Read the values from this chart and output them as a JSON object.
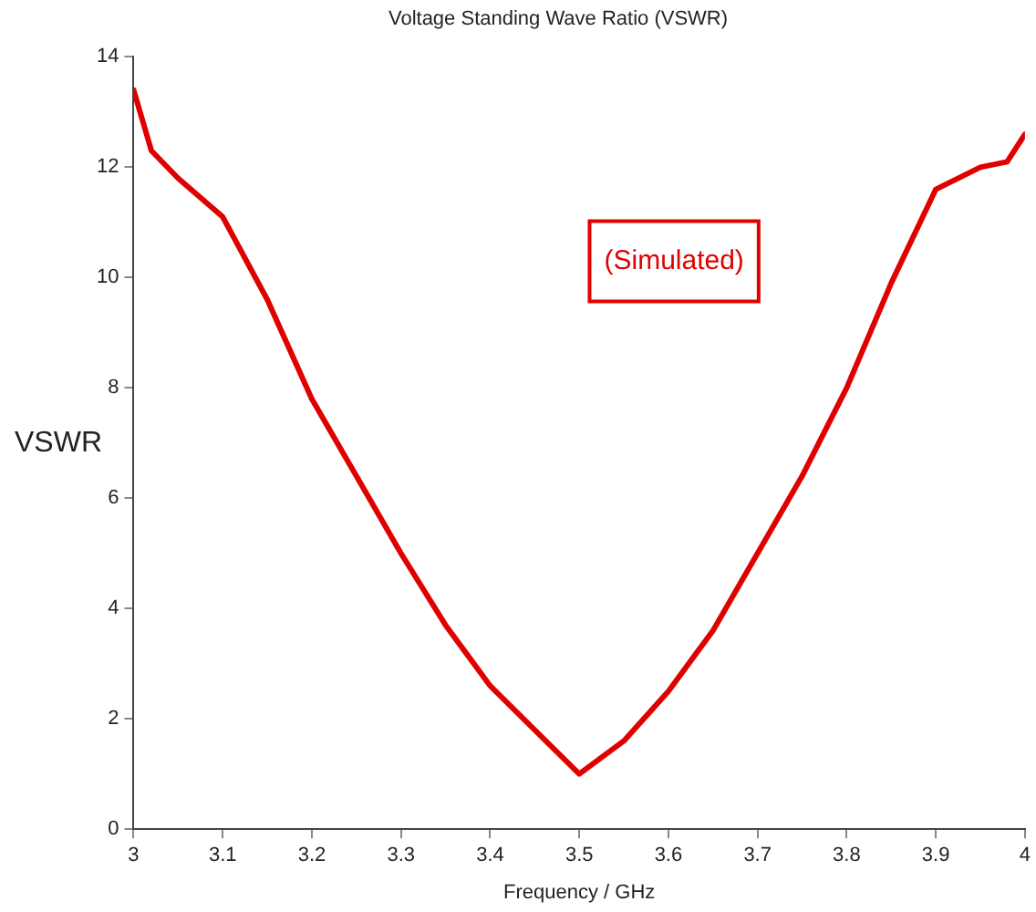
{
  "chart_data": {
    "type": "line",
    "title": "Voltage Standing Wave Ratio (VSWR)",
    "xlabel": "Frequency / GHz",
    "ylabel": "VSWR",
    "x": [
      3.0,
      3.02,
      3.05,
      3.1,
      3.15,
      3.2,
      3.25,
      3.3,
      3.35,
      3.4,
      3.45,
      3.5,
      3.55,
      3.6,
      3.65,
      3.7,
      3.75,
      3.8,
      3.85,
      3.9,
      3.95,
      3.98,
      4.0
    ],
    "series": [
      {
        "name": "(Simulated)",
        "color": "#e00000",
        "values": [
          13.4,
          12.3,
          11.8,
          11.1,
          9.6,
          7.8,
          6.4,
          5.0,
          3.7,
          2.6,
          1.8,
          1.0,
          1.6,
          2.5,
          3.6,
          5.0,
          6.4,
          8.0,
          9.9,
          11.6,
          12.0,
          12.1,
          12.6
        ]
      }
    ],
    "xlim": [
      3,
      4
    ],
    "xticks": [
      3,
      3.1,
      3.2,
      3.3,
      3.4,
      3.5,
      3.6,
      3.7,
      3.8,
      3.9,
      4
    ],
    "ylim": [
      0,
      14
    ],
    "yticks": [
      0,
      2,
      4,
      6,
      8,
      10,
      12,
      14
    ],
    "grid": false,
    "legend": "top right",
    "marker": "none",
    "line_style": "solid"
  }
}
